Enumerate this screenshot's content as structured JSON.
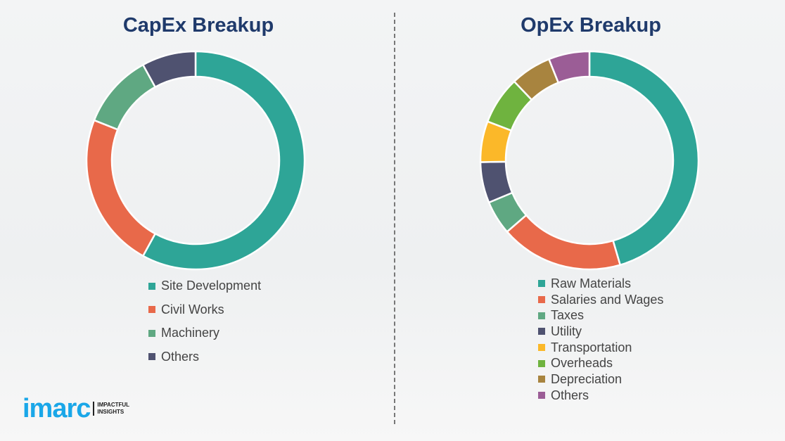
{
  "chart_data": [
    {
      "type": "pie",
      "donut": true,
      "title": "CapEx Breakup",
      "categories": [
        "Site Development",
        "Civil Works",
        "Machinery",
        "Others"
      ],
      "values": [
        58,
        23,
        11,
        8
      ],
      "colors": [
        "#2ea597",
        "#e8694a",
        "#5fa882",
        "#4f5270"
      ],
      "legend_position": "bottom"
    },
    {
      "type": "pie",
      "donut": true,
      "title": "OpEx Breakup",
      "categories": [
        "Raw Materials",
        "Salaries and Wages",
        "Taxes",
        "Utility",
        "Transportation",
        "Overheads",
        "Depreciation",
        "Others"
      ],
      "values": [
        45,
        18,
        5,
        6,
        6,
        7,
        6,
        6
      ],
      "colors": [
        "#2ea597",
        "#e8694a",
        "#5fa882",
        "#4f5270",
        "#fbb829",
        "#6fb33f",
        "#a8843f",
        "#9b5d96"
      ],
      "legend_position": "bottom"
    }
  ],
  "logo": {
    "word": "imarc",
    "tagline_1": "IMPACTFUL",
    "tagline_2": "INSIGHTS"
  }
}
